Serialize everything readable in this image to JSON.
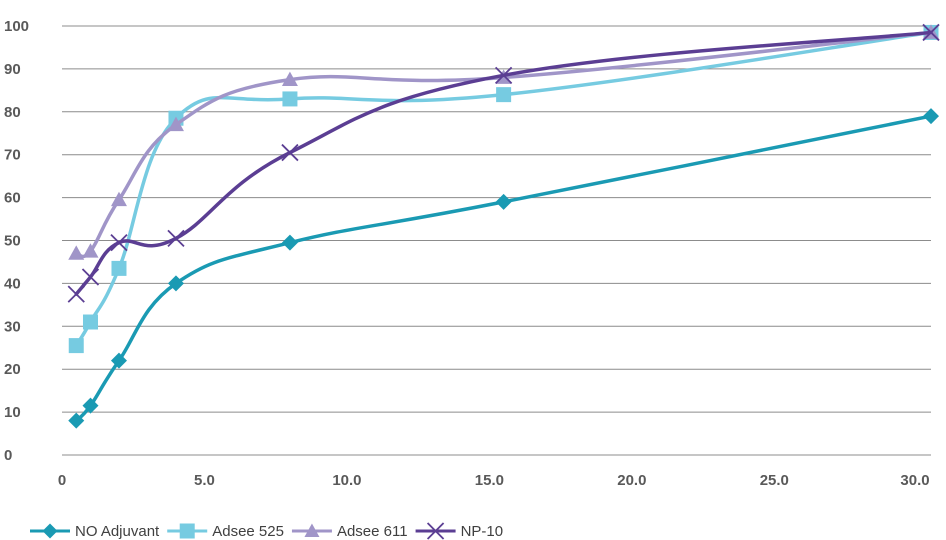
{
  "chart_data": {
    "type": "line",
    "title": "",
    "xlabel": "",
    "ylabel": "",
    "xlim": [
      0,
      30.5
    ],
    "ylim": [
      0,
      100
    ],
    "x_ticks": [
      0,
      5,
      10,
      15,
      20,
      25,
      30
    ],
    "x_tick_labels": [
      "0",
      "5.0",
      "10.0",
      "15.0",
      "20.0",
      "25.0",
      "30.0"
    ],
    "y_ticks": [
      0,
      10,
      20,
      30,
      40,
      50,
      60,
      70,
      80,
      90,
      100
    ],
    "y_tick_labels": [
      "0",
      "10",
      "20",
      "30",
      "40",
      "50",
      "60",
      "70",
      "80",
      "90",
      "100"
    ],
    "grid": "horizontal",
    "legend_position": "bottom-left",
    "series": [
      {
        "name": "NO Adjuvant",
        "color": "#1a9ab3",
        "marker": "diamond",
        "x": [
          0.5,
          1,
          2,
          4,
          8,
          15.5,
          30.5
        ],
        "y": [
          8,
          11.5,
          22,
          40,
          49.5,
          59,
          79
        ]
      },
      {
        "name": "Adsee 525",
        "color": "#76cbe1",
        "marker": "square",
        "x": [
          0.5,
          1,
          2,
          4,
          8,
          15.5,
          30.5
        ],
        "y": [
          25.5,
          31,
          43.5,
          78.5,
          83,
          84,
          98.5
        ]
      },
      {
        "name": "Adsee 611",
        "color": "#a095c8",
        "marker": "triangle",
        "x": [
          0.5,
          1,
          2,
          4,
          8,
          15.5,
          30.5
        ],
        "y": [
          47,
          47.5,
          59.5,
          77,
          87.5,
          88,
          98.5
        ]
      },
      {
        "name": "NP-10",
        "color": "#5b3e93",
        "marker": "x",
        "x": [
          0.5,
          1,
          2,
          4,
          8,
          15.5,
          30.5
        ],
        "y": [
          37.5,
          41.5,
          49.5,
          50.5,
          70.5,
          88.5,
          98.5
        ]
      }
    ]
  }
}
